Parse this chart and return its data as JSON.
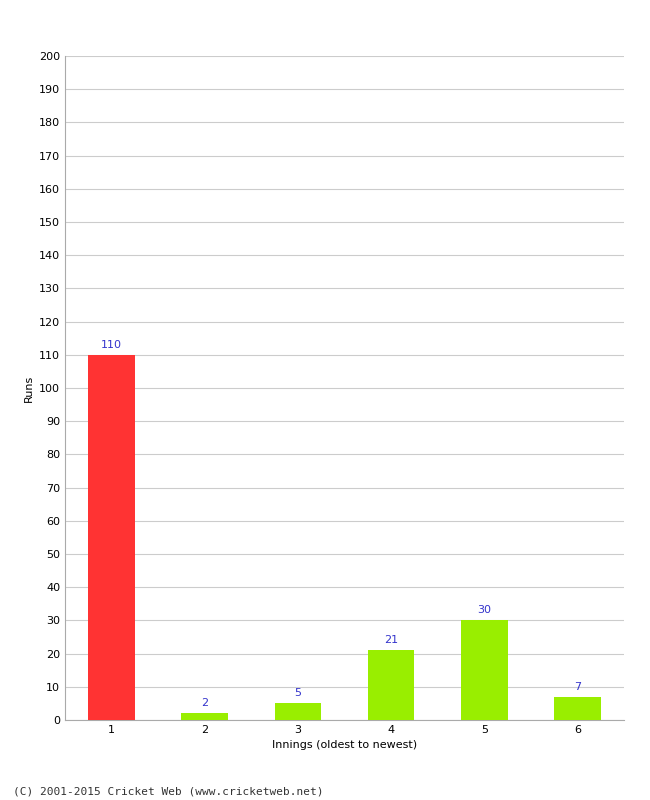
{
  "categories": [
    "1",
    "2",
    "3",
    "4",
    "5",
    "6"
  ],
  "values": [
    110,
    2,
    5,
    21,
    30,
    7
  ],
  "bar_colors": [
    "#ff3333",
    "#99ee00",
    "#99ee00",
    "#99ee00",
    "#99ee00",
    "#99ee00"
  ],
  "xlabel": "Innings (oldest to newest)",
  "ylabel": "Runs",
  "ylim": [
    0,
    200
  ],
  "yticks": [
    0,
    10,
    20,
    30,
    40,
    50,
    60,
    70,
    80,
    90,
    100,
    110,
    120,
    130,
    140,
    150,
    160,
    170,
    180,
    190,
    200
  ],
  "label_color": "#3333cc",
  "label_fontsize": 8,
  "axis_label_fontsize": 8,
  "tick_fontsize": 8,
  "footer_text": "(C) 2001-2015 Cricket Web (www.cricketweb.net)",
  "footer_fontsize": 8,
  "background_color": "#ffffff",
  "grid_color": "#cccccc",
  "bar_width": 0.5
}
